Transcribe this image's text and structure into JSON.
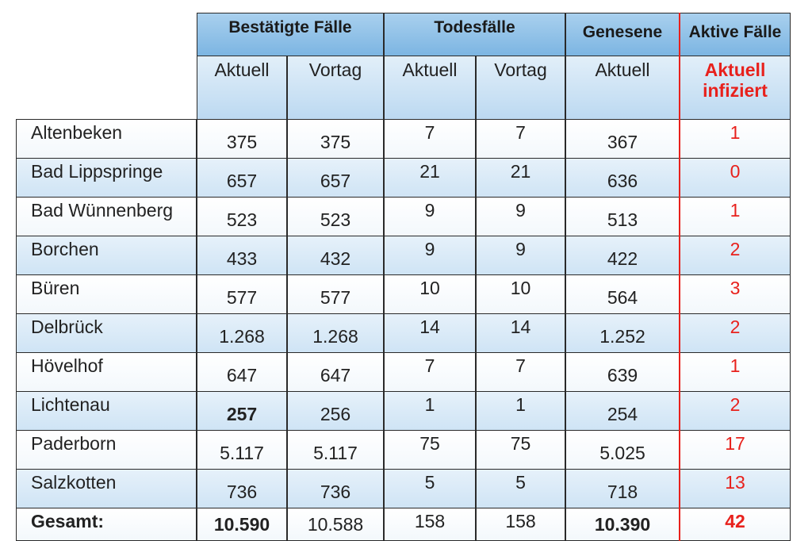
{
  "header": {
    "groups": [
      "Bestätigte Fälle",
      "Todesfälle",
      "Genesene",
      "Aktive Fälle"
    ],
    "subheaders": [
      "Aktuell",
      "Vortag",
      "Aktuell",
      "Vortag",
      "Aktuell",
      "Aktuell infiziert"
    ]
  },
  "table": {
    "rows": [
      [
        "Altenbeken",
        "375",
        "375",
        "7",
        "7",
        "367",
        "1"
      ],
      [
        "Bad Lippspringe",
        "657",
        "657",
        "21",
        "21",
        "636",
        "0"
      ],
      [
        "Bad Wünnenberg",
        "523",
        "523",
        "9",
        "9",
        "513",
        "1"
      ],
      [
        "Borchen",
        "433",
        "432",
        "9",
        "9",
        "422",
        "2"
      ],
      [
        "Büren",
        "577",
        "577",
        "10",
        "10",
        "564",
        "3"
      ],
      [
        "Delbrück",
        "1.268",
        "1.268",
        "14",
        "14",
        "1.252",
        "2"
      ],
      [
        "Hövelhof",
        "647",
        "647",
        "7",
        "7",
        "639",
        "1"
      ],
      [
        "Lichtenau",
        "257",
        "256",
        "1",
        "1",
        "254",
        "2"
      ],
      [
        "Paderborn",
        "5.117",
        "5.117",
        "75",
        "75",
        "5.025",
        "17"
      ],
      [
        "Salzkotten",
        "736",
        "736",
        "5",
        "5",
        "718",
        "13"
      ],
      [
        "Gesamt:",
        "10.590",
        "10.588",
        "158",
        "158",
        "10.390",
        "42"
      ]
    ]
  }
}
